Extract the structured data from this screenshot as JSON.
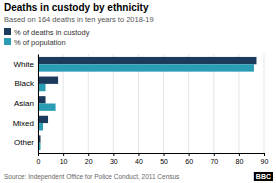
{
  "chart_data": {
    "type": "bar",
    "orientation": "horizontal",
    "title": "Deaths in custody by ethnicity",
    "subtitle": "Based on 164 deaths in ten years to 2018-19",
    "categories": [
      "White",
      "Black",
      "Asian",
      "Mixed",
      "Other"
    ],
    "series": [
      {
        "name": "% of deaths in custody",
        "color": "#1b3a5c",
        "values": [
          87,
          8,
          3,
          4,
          1
        ]
      },
      {
        "name": "% of population",
        "color": "#2a9db5",
        "values": [
          86,
          3,
          7,
          2,
          1
        ]
      }
    ],
    "xlim": [
      0,
      90
    ],
    "xticks": [
      0,
      10,
      20,
      30,
      40,
      50,
      60,
      70,
      80,
      90
    ],
    "grid": true,
    "legend": "upper left",
    "annotations": [
      "Source: Independent Office for Police Conduct, 2011 Census",
      "BBC"
    ]
  }
}
